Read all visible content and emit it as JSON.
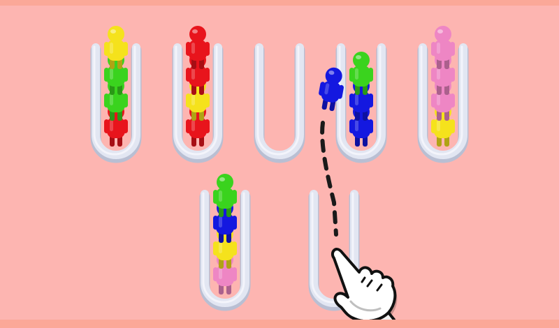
{
  "colors": {
    "background": "#fdb5b1",
    "tube": "#e2e6f2",
    "tube_edge": "#b9bfd3",
    "red": "#e8141c",
    "yellow": "#f5e21c",
    "green": "#3ad31e",
    "blue": "#1418e0",
    "pink": "#ee86c4",
    "path": "#1a1a1a",
    "hand": "#ffffff"
  },
  "game": {
    "tubes": [
      {
        "id": "tube-1",
        "people": [
          "red",
          "green",
          "green",
          "yellow"
        ]
      },
      {
        "id": "tube-2",
        "people": [
          "red",
          "yellow",
          "red",
          "red"
        ]
      },
      {
        "id": "tube-3",
        "people": []
      },
      {
        "id": "tube-4",
        "people": [
          "blue",
          "blue",
          "green"
        ]
      },
      {
        "id": "tube-5",
        "people": [
          "yellow",
          "pink",
          "pink",
          "pink"
        ]
      },
      {
        "id": "tube-6",
        "people": [
          "pink",
          "yellow",
          "blue",
          "green"
        ]
      },
      {
        "id": "tube-7",
        "people": []
      }
    ],
    "moving_person": {
      "color": "blue"
    },
    "hint": {
      "icon": "tap-hand-icon",
      "path_icon": "dashed-path"
    }
  }
}
